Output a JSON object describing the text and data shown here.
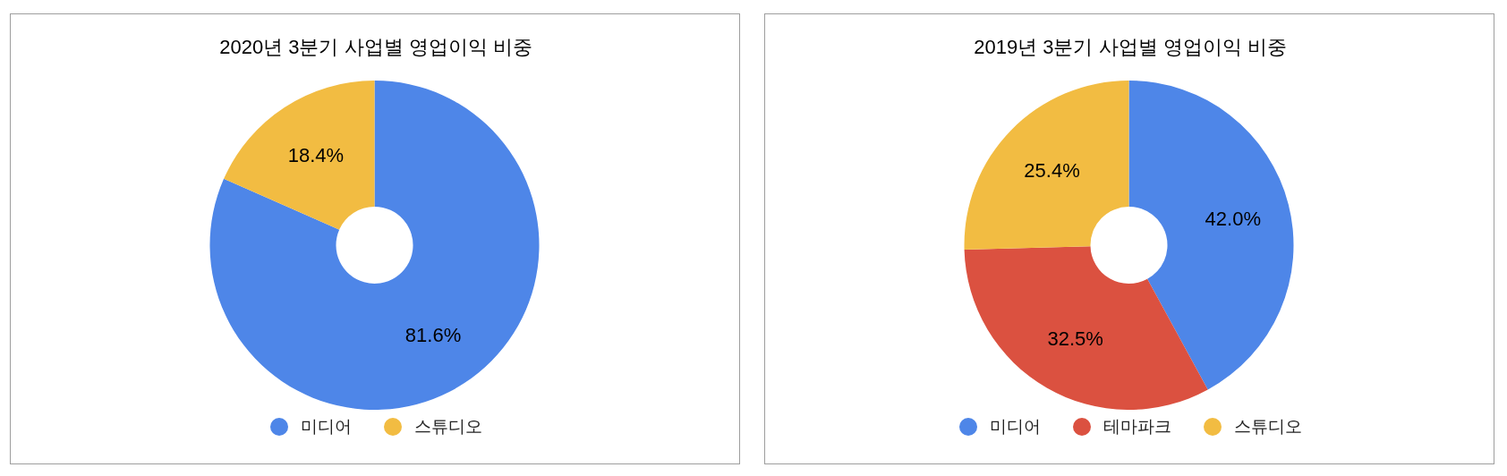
{
  "chart_data": [
    {
      "type": "donut",
      "title": "2020년 3분기 사업별 영업이익 비중",
      "categories": [
        "미디어",
        "스튜디오"
      ],
      "values": [
        81.6,
        18.4
      ],
      "colors": [
        "#4e86e8",
        "#f2bc42"
      ],
      "value_labels": [
        "81.6%",
        "18.4%"
      ],
      "legend": "bottom"
    },
    {
      "type": "donut",
      "title": "2019년 3분기 사업별 영업이익 비중",
      "categories": [
        "미디어",
        "테마파크",
        "스튜디오"
      ],
      "values": [
        42.0,
        32.5,
        25.4
      ],
      "colors": [
        "#4e86e8",
        "#db5140",
        "#f2bc42"
      ],
      "value_labels": [
        "42.0%",
        "32.5%",
        "25.4%"
      ],
      "legend": "bottom"
    }
  ]
}
